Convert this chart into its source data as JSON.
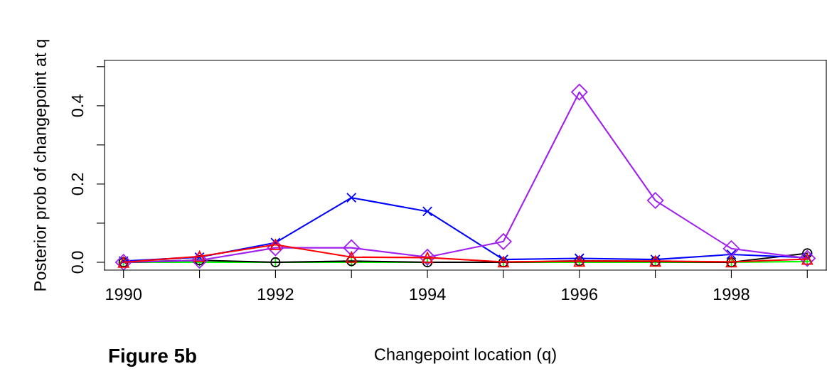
{
  "chart_data": {
    "type": "line",
    "xlabel": "Changepoint location (q)",
    "ylabel": "Posterior prob of changepoint at q",
    "x": [
      1990,
      1991,
      1992,
      1993,
      1994,
      1995,
      1996,
      1997,
      1998,
      1999
    ],
    "series": [
      {
        "color": "#00ff00",
        "marker": "plus",
        "values": [
          0,
          0,
          0,
          0,
          0,
          0,
          0,
          0,
          0,
          0.002
        ]
      },
      {
        "color": "#000000",
        "marker": "circle",
        "values": [
          0,
          0.005,
          0,
          0.003,
          0,
          0,
          0.003,
          0.002,
          0,
          0.023
        ]
      },
      {
        "color": "#0000ff",
        "marker": "cross",
        "values": [
          0.003,
          0.013,
          0.05,
          0.165,
          0.13,
          0.007,
          0.01,
          0.007,
          0.02,
          0.012
        ]
      },
      {
        "color": "#a020f0",
        "marker": "diamond",
        "values": [
          0,
          0.005,
          0.037,
          0.037,
          0.013,
          0.053,
          0.435,
          0.158,
          0.035,
          0.01
        ]
      },
      {
        "color": "#ff0000",
        "marker": "triangle",
        "values": [
          0,
          0.015,
          0.045,
          0.013,
          0.012,
          0.001,
          0.003,
          0.003,
          0.001,
          0.008
        ]
      }
    ],
    "xlim": [
      1989.75,
      1999.25
    ],
    "xticks": [
      1990,
      {
        "value": 1991,
        "label": null
      },
      1992,
      {
        "value": 1993,
        "label": null
      },
      1994,
      {
        "value": 1995,
        "label": null
      },
      1996,
      {
        "value": 1997,
        "label": null
      },
      1998,
      {
        "value": 1999,
        "label": null
      }
    ],
    "ylim": [
      -0.02,
      0.516
    ],
    "yticks": [
      {
        "value": 0,
        "label": "0.0"
      },
      {
        "value": 0.1,
        "label": null
      },
      {
        "value": 0.2,
        "label": "0.2"
      },
      {
        "value": 0.3,
        "label": null
      },
      {
        "value": 0.4,
        "label": "0.4"
      },
      {
        "value": 0.5,
        "label": null
      }
    ],
    "grid": false,
    "legend": false,
    "annotations": [
      "Figure 5b"
    ]
  }
}
